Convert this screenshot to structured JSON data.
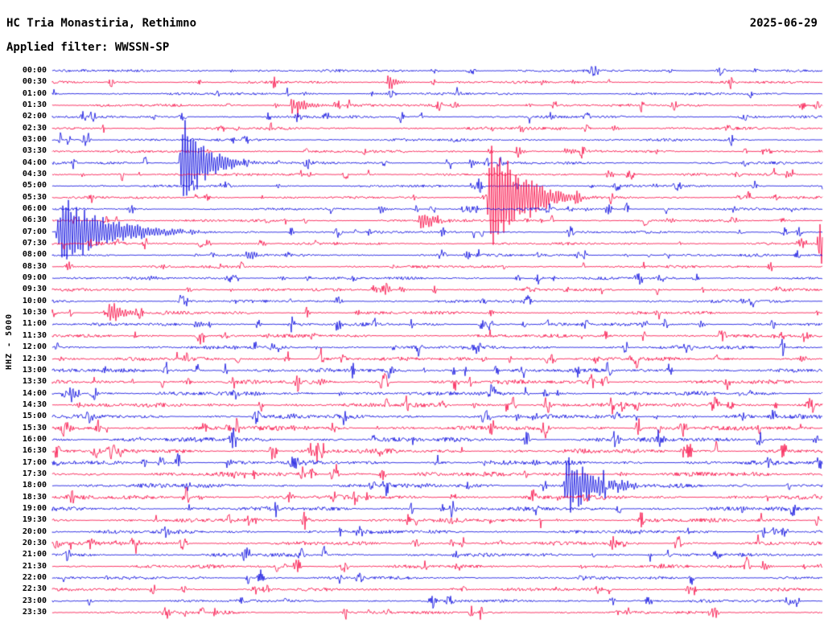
{
  "header": {
    "station_title": "HC Tria Monastiria, Rethimno",
    "date": "2025-06-29",
    "filter_label": "Applied filter: WWSSN-SP"
  },
  "chart_data": {
    "type": "line",
    "title": "HC Tria Monastiria, Rethimno",
    "subtitle": "Applied filter: WWSSN-SP",
    "date": "2025-06-29",
    "ylabel": "HHZ - 5000",
    "xlabel": "",
    "rows_per_day": 48,
    "row_duration_minutes": 30,
    "trace_colors": {
      "even_rows": "#0000dd",
      "odd_rows": "#f8003e"
    },
    "row_labels": [
      "00:00",
      "00:30",
      "01:00",
      "01:30",
      "02:00",
      "02:30",
      "03:00",
      "03:30",
      "04:00",
      "04:30",
      "05:00",
      "05:30",
      "06:00",
      "06:30",
      "07:00",
      "07:30",
      "08:00",
      "08:30",
      "09:00",
      "09:30",
      "10:00",
      "10:30",
      "11:00",
      "11:30",
      "12:00",
      "12:30",
      "13:00",
      "13:30",
      "14:00",
      "14:30",
      "15:00",
      "15:30",
      "16:00",
      "16:30",
      "17:00",
      "17:30",
      "18:00",
      "18:30",
      "19:00",
      "19:30",
      "20:00",
      "20:30",
      "21:00",
      "21:30",
      "22:00",
      "22:30",
      "23:00",
      "23:30"
    ],
    "events": [
      {
        "row": 0,
        "line": "00:00",
        "pos": 0.23,
        "amp": 4,
        "dur": 8
      },
      {
        "row": 0,
        "line": "00:00",
        "pos": 0.266,
        "amp": 3,
        "dur": 6
      },
      {
        "row": 1,
        "line": "00:30",
        "pos": 0.434,
        "amp": 14,
        "dur": 15
      },
      {
        "row": 2,
        "line": "01:00",
        "pos": 0.324,
        "amp": 5,
        "dur": 8
      },
      {
        "row": 3,
        "line": "01:30",
        "pos": 0.287,
        "amp": 6,
        "dur": 8
      },
      {
        "row": 3,
        "line": "01:30",
        "pos": 0.308,
        "amp": 16,
        "dur": 25
      },
      {
        "row": 5,
        "line": "02:30",
        "pos": 0.653,
        "amp": 4,
        "dur": 10
      },
      {
        "row": 5,
        "line": "02:30",
        "pos": 0.726,
        "amp": 6,
        "dur": 12
      },
      {
        "row": 7,
        "line": "03:30",
        "pos": 0.564,
        "amp": 5,
        "dur": 10
      },
      {
        "row": 7,
        "line": "03:30",
        "pos": 0.601,
        "amp": 6,
        "dur": 12
      },
      {
        "row": 7,
        "line": "03:30",
        "pos": 0.663,
        "amp": 6,
        "dur": 14
      },
      {
        "row": 8,
        "line": "04:00",
        "pos": 0.164,
        "amp": 65,
        "dur": 45
      },
      {
        "row": 8,
        "line": "04:00",
        "pos": 0.541,
        "amp": 10,
        "dur": 10
      },
      {
        "row": 9,
        "line": "04:30",
        "pos": 0.951,
        "amp": 7,
        "dur": 10
      },
      {
        "row": 10,
        "line": "05:00",
        "pos": 0.541,
        "amp": 7,
        "dur": 10
      },
      {
        "row": 11,
        "line": "05:30",
        "pos": 0.564,
        "amp": 100,
        "dur": 55
      },
      {
        "row": 12,
        "line": "06:00",
        "pos": 0.423,
        "amp": 8,
        "dur": 12
      },
      {
        "row": 12,
        "line": "06:00",
        "pos": 0.69,
        "amp": 5,
        "dur": 8
      },
      {
        "row": 12,
        "line": "06:00",
        "pos": 0.881,
        "amp": 8,
        "dur": 10
      },
      {
        "row": 13,
        "line": "06:30",
        "pos": 0.475,
        "amp": 18,
        "dur": 22
      },
      {
        "row": 13,
        "line": "06:30",
        "pos": 0.797,
        "amp": 6,
        "dur": 10
      },
      {
        "row": 14,
        "line": "07:00",
        "pos": 0.004,
        "amp": 58,
        "dur": 80
      },
      {
        "row": 15,
        "line": "07:30",
        "pos": 0.992,
        "amp": 32,
        "dur": 40
      },
      {
        "row": 16,
        "line": "08:00",
        "pos": 0.251,
        "amp": 10,
        "dur": 16
      },
      {
        "row": 17,
        "line": "08:30",
        "pos": 0.141,
        "amp": 5,
        "dur": 8
      },
      {
        "row": 18,
        "line": "09:00",
        "pos": 0.125,
        "amp": 6,
        "dur": 8
      },
      {
        "row": 19,
        "line": "09:30",
        "pos": 0.23,
        "amp": 4,
        "dur": 6
      },
      {
        "row": 19,
        "line": "09:30",
        "pos": 0.451,
        "amp": 7,
        "dur": 8
      },
      {
        "row": 20,
        "line": "10:00",
        "pos": 0.235,
        "amp": 5,
        "dur": 8
      },
      {
        "row": 20,
        "line": "10:00",
        "pos": 0.893,
        "amp": 6,
        "dur": 8
      },
      {
        "row": 21,
        "line": "10:30",
        "pos": 0.071,
        "amp": 22,
        "dur": 22
      },
      {
        "row": 22,
        "line": "11:00",
        "pos": 0.183,
        "amp": 7,
        "dur": 14
      },
      {
        "row": 22,
        "line": "11:00",
        "pos": 0.839,
        "amp": 9,
        "dur": 8
      },
      {
        "row": 23,
        "line": "11:30",
        "pos": 0.277,
        "amp": 5,
        "dur": 6
      },
      {
        "row": 24,
        "line": "12:00",
        "pos": 0.34,
        "amp": 4,
        "dur": 6
      },
      {
        "row": 25,
        "line": "12:30",
        "pos": 0.439,
        "amp": 5,
        "dur": 6
      },
      {
        "row": 26,
        "line": "13:00",
        "pos": 0.277,
        "amp": 4,
        "dur": 6
      },
      {
        "row": 27,
        "line": "13:30",
        "pos": 0.345,
        "amp": 7,
        "dur": 10
      },
      {
        "row": 28,
        "line": "14:00",
        "pos": 0.261,
        "amp": 6,
        "dur": 8
      },
      {
        "row": 28,
        "line": "14:00",
        "pos": 0.371,
        "amp": 5,
        "dur": 8
      },
      {
        "row": 29,
        "line": "14:30",
        "pos": 0.031,
        "amp": 6,
        "dur": 8
      },
      {
        "row": 30,
        "line": "15:00",
        "pos": 0.303,
        "amp": 8,
        "dur": 10
      },
      {
        "row": 30,
        "line": "15:00",
        "pos": 0.601,
        "amp": 7,
        "dur": 8
      },
      {
        "row": 30,
        "line": "15:00",
        "pos": 0.622,
        "amp": 6,
        "dur": 8
      },
      {
        "row": 30,
        "line": "15:00",
        "pos": 0.831,
        "amp": 5,
        "dur": 6
      },
      {
        "row": 31,
        "line": "15:30",
        "pos": 0.308,
        "amp": 7,
        "dur": 8
      },
      {
        "row": 31,
        "line": "15:30",
        "pos": 0.327,
        "amp": 6,
        "dur": 8
      },
      {
        "row": 32,
        "line": "16:00",
        "pos": 0.705,
        "amp": 4,
        "dur": 6
      },
      {
        "row": 34,
        "line": "17:00",
        "pos": 0.225,
        "amp": 7,
        "dur": 12
      },
      {
        "row": 34,
        "line": "17:00",
        "pos": 0.308,
        "amp": 6,
        "dur": 8
      },
      {
        "row": 34,
        "line": "17:00",
        "pos": 0.559,
        "amp": 5,
        "dur": 10
      },
      {
        "row": 34,
        "line": "17:00",
        "pos": 0.622,
        "amp": 5,
        "dur": 10
      },
      {
        "row": 35,
        "line": "17:30",
        "pos": 0.246,
        "amp": 5,
        "dur": 8
      },
      {
        "row": 35,
        "line": "17:30",
        "pos": 0.737,
        "amp": 6,
        "dur": 8
      },
      {
        "row": 36,
        "line": "18:00",
        "pos": 0.663,
        "amp": 45,
        "dur": 50
      },
      {
        "row": 36,
        "line": "18:00",
        "pos": 0.731,
        "amp": 10,
        "dur": 12
      },
      {
        "row": 37,
        "line": "18:30",
        "pos": 0.188,
        "amp": 5,
        "dur": 8
      },
      {
        "row": 37,
        "line": "18:30",
        "pos": 0.653,
        "amp": 6,
        "dur": 8
      },
      {
        "row": 38,
        "line": "19:00",
        "pos": 0.893,
        "amp": 8,
        "dur": 10
      },
      {
        "row": 39,
        "line": "19:30",
        "pos": 0.653,
        "amp": 4,
        "dur": 6
      },
      {
        "row": 43,
        "line": "21:30",
        "pos": 0.92,
        "amp": 9,
        "dur": 12
      }
    ]
  }
}
